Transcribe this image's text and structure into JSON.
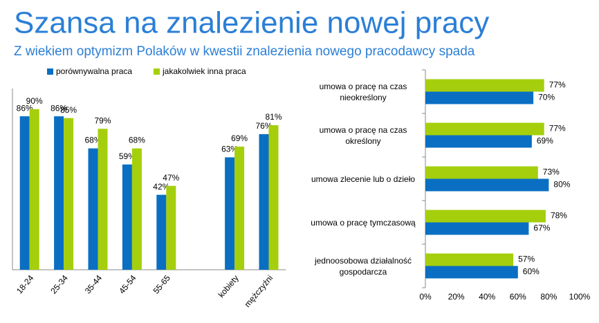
{
  "title": "Szansa na znalezienie nowej pracy",
  "subtitle": "Z wiekiem optymizm Polaków w kwestii znalezienia nowego pracodawcy spada",
  "chart_data": [
    {
      "type": "bar",
      "categories": [
        "18-24",
        "25-34",
        "35-44",
        "45-54",
        "55-65",
        null,
        "kobiety",
        "mężczyźni"
      ],
      "series": [
        {
          "name": "porównywalna praca",
          "color": "#0a6fc2",
          "values": [
            86,
            86,
            68,
            59,
            42,
            null,
            63,
            76
          ],
          "value_labels": [
            "86%",
            "86%",
            "68%",
            "59%",
            "42%",
            null,
            "63%",
            "76%"
          ]
        },
        {
          "name": "jakakolwiek inna praca",
          "color": "#a5cf0c",
          "values": [
            90,
            85,
            79,
            68,
            47,
            null,
            69,
            81
          ],
          "value_labels": [
            "90%",
            "85%",
            "79%",
            "68%",
            "47%",
            null,
            "69%",
            "81%"
          ]
        }
      ],
      "ylim": [
        0,
        100
      ]
    },
    {
      "type": "hbar",
      "categories": [
        "umowa o pracę na czas nieokreślony",
        "umowa o pracę na czas określony",
        "umowa zlecenie lub o dzieło",
        "umowa o pracę tymczasową",
        "jednoosobowa działalność gospodarcza"
      ],
      "series": [
        {
          "color": "#a5cf0c",
          "values": [
            77,
            77,
            73,
            78,
            57
          ],
          "value_labels": [
            "77%",
            "77%",
            "73%",
            "78%",
            "57%"
          ]
        },
        {
          "color": "#0a6fc2",
          "values": [
            70,
            69,
            80,
            67,
            60
          ],
          "value_labels": [
            "70%",
            "69%",
            "80%",
            "67%",
            "60%"
          ]
        }
      ],
      "xlim": [
        0,
        100
      ],
      "xticks": [
        {
          "value": 0,
          "label": "0%"
        },
        {
          "value": 20,
          "label": "20%"
        },
        {
          "value": 40,
          "label": "40%"
        },
        {
          "value": 60,
          "label": "60%"
        },
        {
          "value": 80,
          "label": "80%"
        },
        {
          "value": 100,
          "label": "100%"
        }
      ]
    }
  ]
}
